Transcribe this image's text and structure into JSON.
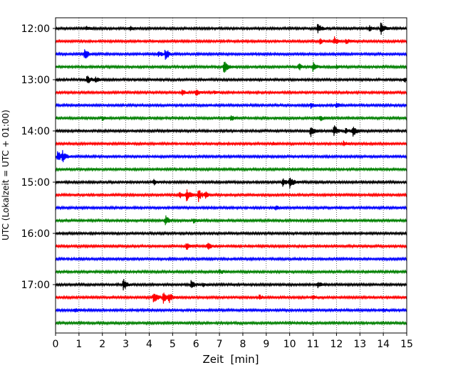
{
  "chart_data": {
    "type": "line",
    "xlabel": "Zeit  [min]",
    "ylabel": "UTC (Lokalzeit = UTC + 01:00)",
    "xlim": [
      0,
      15
    ],
    "x_ticks": [
      0,
      1,
      2,
      3,
      4,
      5,
      6,
      7,
      8,
      9,
      10,
      11,
      12,
      13,
      14,
      15
    ],
    "y_tick_labels": [
      "12:00",
      "13:00",
      "14:00",
      "15:00",
      "16:00",
      "17:00"
    ],
    "grid": "vertical dotted",
    "trace_interval_minutes": 15,
    "color_cycle": [
      "#000000",
      "#ff0000",
      "#0000ff",
      "#008000"
    ],
    "series": [
      {
        "start": "12:00",
        "color": "#000000",
        "events": [
          [
            11.2,
            0.9
          ],
          [
            13.9,
            1.0
          ],
          [
            1.3,
            0.4
          ],
          [
            3.2,
            0.3
          ],
          [
            13.4,
            0.4
          ]
        ]
      },
      {
        "start": "12:15",
        "color": "#ff0000",
        "events": [
          [
            11.9,
            0.7
          ],
          [
            11.3,
            0.4
          ],
          [
            12.4,
            0.4
          ]
        ]
      },
      {
        "start": "12:30",
        "color": "#0000ff",
        "events": [
          [
            1.25,
            0.9
          ],
          [
            4.7,
            0.9
          ],
          [
            4.4,
            0.4
          ]
        ]
      },
      {
        "start": "12:45",
        "color": "#008000",
        "events": [
          [
            7.2,
            1.0
          ],
          [
            10.4,
            0.5
          ],
          [
            11.0,
            0.7
          ],
          [
            12.0,
            0.3
          ]
        ]
      },
      {
        "start": "13:00",
        "color": "#000000",
        "events": [
          [
            1.35,
            0.8
          ],
          [
            1.7,
            0.4
          ],
          [
            14.9,
            0.5
          ]
        ]
      },
      {
        "start": "13:15",
        "color": "#ff0000",
        "events": [
          [
            6.0,
            0.5
          ],
          [
            5.4,
            0.4
          ],
          [
            6.8,
            0.3
          ]
        ]
      },
      {
        "start": "13:30",
        "color": "#0000ff",
        "events": [
          [
            10.9,
            0.4
          ],
          [
            12.0,
            0.3
          ]
        ]
      },
      {
        "start": "13:45",
        "color": "#008000",
        "events": [
          [
            7.5,
            0.4
          ],
          [
            11.3,
            0.4
          ],
          [
            2.0,
            0.3
          ]
        ]
      },
      {
        "start": "14:00",
        "color": "#000000",
        "events": [
          [
            10.9,
            0.9
          ],
          [
            11.9,
            0.9
          ],
          [
            12.7,
            0.9
          ],
          [
            12.4,
            0.4
          ]
        ]
      },
      {
        "start": "14:15",
        "color": "#ff0000",
        "events": [
          [
            12.3,
            0.4
          ],
          [
            9.3,
            0.2
          ]
        ]
      },
      {
        "start": "14:30",
        "color": "#0000ff",
        "events": [
          [
            0.1,
            0.9
          ],
          [
            0.3,
            0.8
          ]
        ]
      },
      {
        "start": "14:45",
        "color": "#008000",
        "events": []
      },
      {
        "start": "15:00",
        "color": "#000000",
        "events": [
          [
            9.7,
            0.8
          ],
          [
            10.0,
            1.0
          ],
          [
            4.2,
            0.4
          ]
        ]
      },
      {
        "start": "15:15",
        "color": "#ff0000",
        "events": [
          [
            5.6,
            1.0
          ],
          [
            6.1,
            1.0
          ],
          [
            5.3,
            0.5
          ],
          [
            6.4,
            0.4
          ]
        ]
      },
      {
        "start": "15:30",
        "color": "#0000ff",
        "events": [
          [
            9.4,
            0.3
          ]
        ]
      },
      {
        "start": "15:45",
        "color": "#008000",
        "events": [
          [
            4.7,
            0.8
          ],
          [
            5.9,
            0.4
          ]
        ]
      },
      {
        "start": "16:00",
        "color": "#000000",
        "events": []
      },
      {
        "start": "16:15",
        "color": "#ff0000",
        "events": [
          [
            5.6,
            0.5
          ],
          [
            6.5,
            0.5
          ]
        ]
      },
      {
        "start": "16:30",
        "color": "#0000ff",
        "events": []
      },
      {
        "start": "16:45",
        "color": "#008000",
        "events": [
          [
            7.0,
            0.4
          ]
        ]
      },
      {
        "start": "17:00",
        "color": "#000000",
        "events": [
          [
            2.9,
            0.9
          ],
          [
            5.8,
            0.9
          ],
          [
            11.2,
            0.5
          ],
          [
            6.3,
            0.3
          ]
        ]
      },
      {
        "start": "17:15",
        "color": "#ff0000",
        "events": [
          [
            4.2,
            1.0
          ],
          [
            4.6,
            0.8
          ],
          [
            4.85,
            0.7
          ],
          [
            8.7,
            0.4
          ],
          [
            11.0,
            0.3
          ]
        ]
      },
      {
        "start": "17:30",
        "color": "#0000ff",
        "events": [
          [
            0.8,
            0.3
          ],
          [
            14.0,
            0.3
          ]
        ]
      },
      {
        "start": "17:45",
        "color": "#008000",
        "events": []
      }
    ]
  }
}
